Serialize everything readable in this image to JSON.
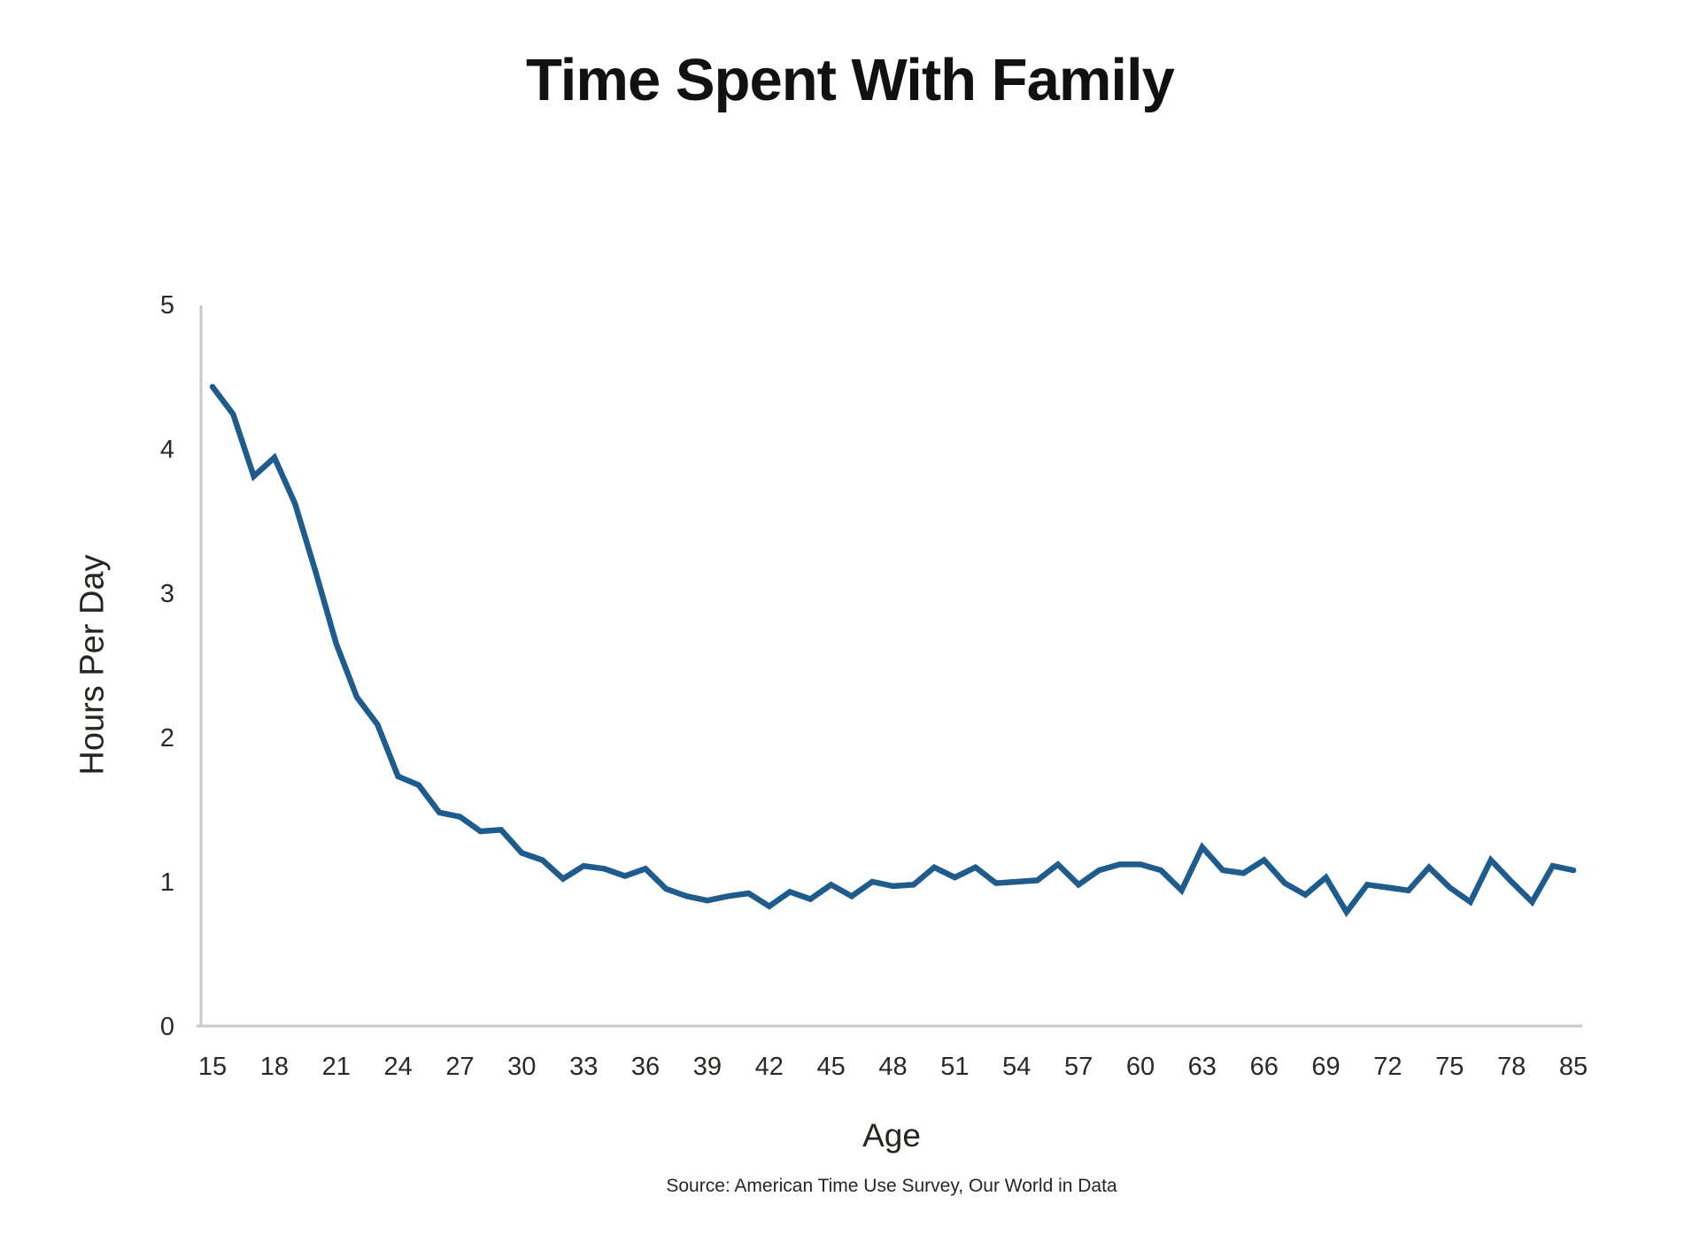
{
  "chart_data": {
    "type": "line",
    "title": "Time Spent With Family",
    "xlabel": "Age",
    "ylabel": "Hours Per Day",
    "source": "Source: American Time Use Survey, Our World in Data",
    "legend": null,
    "grid": false,
    "line_color": "#1e5c8d",
    "axis_color": "#c9c9c9",
    "tick_text_color": "#2a2a25",
    "ylim": [
      0,
      5
    ],
    "y_ticks": [
      0,
      1,
      2,
      3,
      4,
      5
    ],
    "x_tick_labels": [
      "15",
      "18",
      "21",
      "24",
      "27",
      "30",
      "33",
      "36",
      "39",
      "42",
      "45",
      "48",
      "51",
      "54",
      "57",
      "60",
      "63",
      "66",
      "69",
      "72",
      "75",
      "78",
      "85"
    ],
    "x": [
      15,
      16,
      17,
      18,
      19,
      20,
      21,
      22,
      23,
      24,
      25,
      26,
      27,
      28,
      29,
      30,
      31,
      32,
      33,
      34,
      35,
      36,
      37,
      38,
      39,
      40,
      41,
      42,
      43,
      44,
      45,
      46,
      47,
      48,
      49,
      50,
      51,
      52,
      53,
      54,
      55,
      56,
      57,
      58,
      59,
      60,
      61,
      62,
      63,
      64,
      65,
      66,
      67,
      68,
      69,
      70,
      71,
      72,
      73,
      74,
      75,
      76,
      77,
      78,
      79,
      80,
      85
    ],
    "values": [
      4.43,
      4.24,
      3.81,
      3.94,
      3.62,
      3.15,
      2.65,
      2.28,
      2.09,
      1.73,
      1.67,
      1.48,
      1.45,
      1.35,
      1.36,
      1.2,
      1.15,
      1.02,
      1.11,
      1.09,
      1.04,
      1.09,
      0.95,
      0.9,
      0.87,
      0.9,
      0.92,
      0.83,
      0.93,
      0.88,
      0.98,
      0.9,
      1.0,
      0.97,
      0.98,
      1.1,
      1.03,
      1.1,
      0.99,
      1.0,
      1.01,
      1.12,
      0.98,
      1.08,
      1.12,
      1.12,
      1.08,
      0.94,
      1.24,
      1.08,
      1.06,
      1.15,
      0.99,
      0.91,
      1.03,
      0.79,
      0.98,
      0.96,
      0.94,
      1.1,
      0.96,
      0.86,
      1.15,
      1.0,
      0.86,
      1.11,
      1.08
    ]
  }
}
